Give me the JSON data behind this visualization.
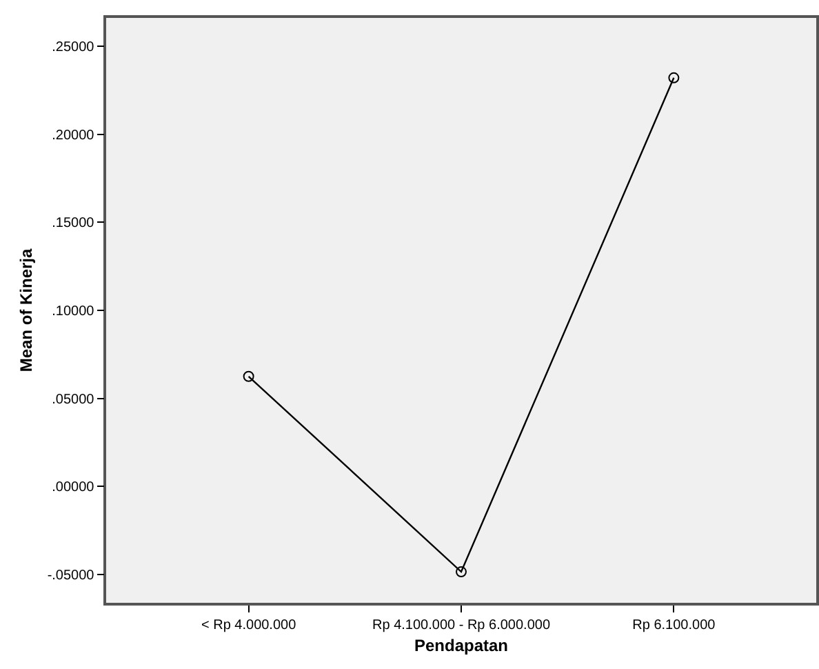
{
  "chart_data": {
    "type": "line",
    "xlabel": "Pendapatan",
    "ylabel": "Mean of Kinerja",
    "categories": [
      "< Rp 4.000.000",
      "Rp 4.100.000 - Rp 6.000.000",
      "Rp 6.100.000"
    ],
    "series": [
      {
        "color": "#000000",
        "values": [
          0.0625,
          -0.0484,
          0.232
        ]
      }
    ],
    "ylim": [
      -0.066,
      0.266
    ],
    "yticks": [
      {
        "value": -0.05,
        "label": "-.05000"
      },
      {
        "value": 0,
        "label": ".00000"
      },
      {
        "value": 0.05,
        "label": ".05000"
      },
      {
        "value": 0.1,
        "label": ".10000"
      },
      {
        "value": 0.15,
        "label": ".15000"
      },
      {
        "value": 0.2,
        "label": ".20000"
      },
      {
        "value": 0.25,
        "label": ".25000"
      }
    ],
    "grid": false,
    "marker": "circle",
    "line_style": "solid"
  }
}
